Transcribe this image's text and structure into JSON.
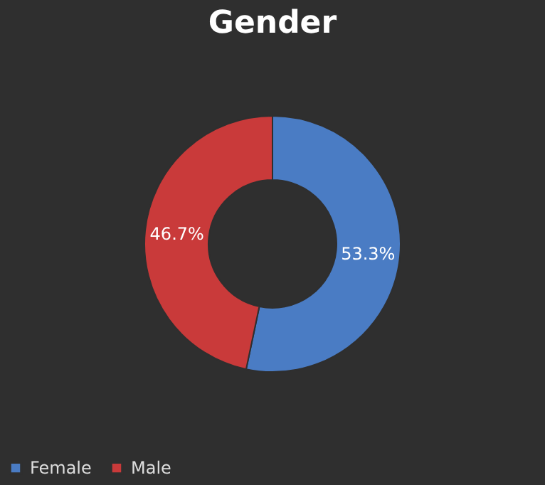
{
  "chart_data": {
    "type": "donut",
    "title": "Gender",
    "categories": [
      "Female",
      "Male"
    ],
    "values": [
      53.3,
      46.7
    ],
    "colors": [
      "#4a7cc4",
      "#c93a3a"
    ],
    "value_labels": [
      "53.3%",
      "46.7%"
    ],
    "legend": "bottom"
  }
}
